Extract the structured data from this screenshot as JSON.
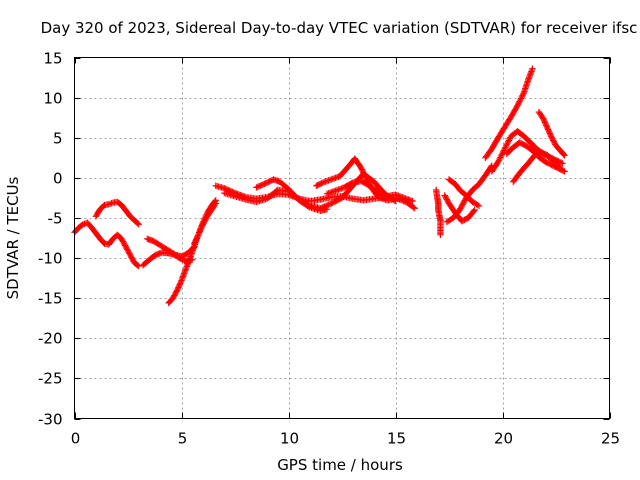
{
  "chart_data": {
    "type": "scatter",
    "title": "Day 320 of 2023, Sidereal Day-to-day VTEC variation (SDTVAR) for receiver ifsc",
    "xlabel": "GPS time / hours",
    "ylabel": "SDTVAR / TECUs",
    "xlim": [
      0,
      25
    ],
    "ylim": [
      -30,
      15
    ],
    "xticks": [
      0,
      5,
      10,
      15,
      20,
      25
    ],
    "yticks": [
      -30,
      -25,
      -20,
      -15,
      -10,
      -5,
      0,
      5,
      10,
      15
    ],
    "xtick_labels": [
      "0",
      "5",
      "10",
      "15",
      "20",
      "25"
    ],
    "ytick_labels": [
      "-30",
      "-25",
      "-20",
      "-15",
      "-10",
      "-5",
      "0",
      "5",
      "10",
      "15"
    ],
    "grid": true,
    "marker": "plus",
    "series_color": "#ff0000",
    "series": [
      {
        "name": "trace-1",
        "x": [
          0.0,
          0.2,
          0.4,
          0.6,
          0.8,
          1.0,
          1.2,
          1.4,
          1.6,
          1.8,
          2.0,
          2.2,
          2.4,
          2.6,
          2.8,
          3.0
        ],
        "y": [
          -6.8,
          -6.2,
          -5.8,
          -5.6,
          -6.2,
          -6.9,
          -7.6,
          -8.2,
          -8.3,
          -7.6,
          -7.1,
          -7.6,
          -8.6,
          -9.6,
          -10.6,
          -11.0
        ]
      },
      {
        "name": "trace-2",
        "x": [
          1.0,
          1.2,
          1.4,
          1.6,
          1.8,
          2.0,
          2.2,
          2.4,
          2.6,
          2.8,
          3.0
        ],
        "y": [
          -4.8,
          -3.9,
          -3.4,
          -3.3,
          -3.1,
          -3.0,
          -3.4,
          -4.1,
          -4.8,
          -5.3,
          -5.8
        ]
      },
      {
        "name": "trace-3",
        "x": [
          3.2,
          3.5,
          3.8,
          4.1,
          4.4,
          4.7,
          5.0,
          5.3,
          5.6
        ],
        "y": [
          -10.9,
          -10.2,
          -9.6,
          -9.3,
          -9.4,
          -9.6,
          -9.8,
          -9.4,
          -8.6
        ]
      },
      {
        "name": "trace-4",
        "x": [
          3.4,
          3.7,
          4.0,
          4.3,
          4.6,
          4.9,
          5.2,
          5.5
        ],
        "y": [
          -7.6,
          -7.9,
          -8.4,
          -8.9,
          -9.4,
          -10.0,
          -10.4,
          -10.2
        ]
      },
      {
        "name": "trace-5",
        "x": [
          4.4,
          4.6,
          4.8,
          5.0,
          5.2,
          5.4,
          5.6,
          5.8,
          6.0,
          6.2,
          6.4,
          6.6
        ],
        "y": [
          -15.6,
          -15.0,
          -14.0,
          -12.8,
          -11.4,
          -10.0,
          -8.5,
          -7.0,
          -5.6,
          -4.4,
          -3.5,
          -2.8
        ]
      },
      {
        "name": "trace-6",
        "x": [
          5.6,
          5.8,
          6.0,
          6.2,
          6.4,
          6.6
        ],
        "y": [
          -8.2,
          -7.0,
          -5.8,
          -4.8,
          -4.0,
          -3.2
        ]
      },
      {
        "name": "trace-7",
        "x": [
          6.6,
          7.0,
          7.5,
          8.0,
          8.5,
          9.0,
          9.5,
          10.0,
          10.5,
          11.0,
          11.5,
          12.0,
          12.5,
          13.0,
          13.5,
          14.0,
          14.5,
          15.0,
          15.5,
          15.9
        ],
        "y": [
          -1.0,
          -1.3,
          -1.9,
          -2.4,
          -2.6,
          -2.4,
          -2.0,
          -2.1,
          -2.6,
          -2.9,
          -2.7,
          -2.4,
          -2.3,
          -2.6,
          -2.8,
          -2.6,
          -2.4,
          -2.5,
          -3.0,
          -3.8
        ]
      },
      {
        "name": "trace-8",
        "x": [
          7.0,
          7.5,
          8.0,
          8.5,
          9.0,
          9.5,
          10.0,
          10.5,
          11.0,
          11.5,
          12.0,
          12.5,
          13.0,
          13.5,
          14.0,
          14.5,
          15.0
        ],
        "y": [
          -1.9,
          -2.3,
          -2.7,
          -3.0,
          -2.6,
          -1.5,
          -1.7,
          -2.7,
          -3.4,
          -3.8,
          -3.2,
          -2.5,
          -1.0,
          0.5,
          -0.5,
          -2.0,
          -2.9
        ]
      },
      {
        "name": "trace-9",
        "x": [
          8.5,
          9.0,
          9.3,
          9.6,
          10.0,
          10.5,
          11.0,
          11.5,
          11.8
        ],
        "y": [
          -1.2,
          -0.6,
          -0.2,
          -0.5,
          -1.4,
          -2.8,
          -3.7,
          -4.1,
          -3.9
        ]
      },
      {
        "name": "trace-10",
        "x": [
          11.3,
          11.6,
          12.0,
          12.4,
          12.8,
          13.1,
          13.4,
          13.8,
          14.2,
          14.6,
          15.0
        ],
        "y": [
          -1.0,
          -0.6,
          -0.2,
          0.2,
          1.4,
          2.4,
          1.2,
          -1.0,
          -2.4,
          -2.8,
          -2.6
        ]
      },
      {
        "name": "trace-11",
        "x": [
          11.8,
          12.2,
          12.6,
          13.0,
          13.4,
          13.8,
          14.2,
          14.6,
          15.0,
          15.4,
          15.8
        ],
        "y": [
          -2.0,
          -1.6,
          -1.2,
          -0.6,
          -0.4,
          -1.0,
          -1.8,
          -2.3,
          -2.1,
          -2.5,
          -2.9
        ]
      },
      {
        "name": "trace-12",
        "x": [
          16.9,
          16.95,
          17.0,
          17.0,
          17.05,
          17.1,
          17.1
        ],
        "y": [
          -1.5,
          -2.4,
          -3.2,
          -4.0,
          -4.7,
          -5.3,
          -7.1
        ]
      },
      {
        "name": "trace-13",
        "x": [
          17.3,
          17.5,
          17.8,
          18.1,
          18.4,
          18.7
        ],
        "y": [
          -2.2,
          -3.2,
          -4.4,
          -5.4,
          -5.0,
          -4.0
        ]
      },
      {
        "name": "trace-14",
        "x": [
          17.4,
          17.7,
          18.0,
          18.3,
          18.6,
          18.9,
          19.2,
          19.5
        ],
        "y": [
          -5.5,
          -5.0,
          -4.0,
          -2.5,
          -1.5,
          -0.8,
          0.3,
          1.5
        ]
      },
      {
        "name": "trace-15",
        "x": [
          17.5,
          17.8,
          18.0,
          18.3,
          18.6,
          18.9
        ],
        "y": [
          -0.2,
          -0.8,
          -1.5,
          -2.2,
          -3.0,
          -3.5
        ]
      },
      {
        "name": "trace-16",
        "x": [
          19.2,
          19.5,
          19.8,
          20.1,
          20.4,
          20.7,
          21.0,
          21.2,
          21.4
        ],
        "y": [
          2.5,
          3.6,
          5.0,
          6.3,
          7.6,
          9.0,
          10.6,
          12.2,
          13.6
        ]
      },
      {
        "name": "trace-17",
        "x": [
          19.5,
          19.8,
          20.1,
          20.4,
          20.7,
          21.0,
          21.3,
          21.6,
          21.9,
          22.2,
          22.5,
          22.8
        ],
        "y": [
          0.8,
          2.0,
          3.6,
          5.2,
          5.8,
          5.2,
          4.4,
          3.6,
          3.0,
          2.6,
          2.2,
          1.8
        ]
      },
      {
        "name": "trace-18",
        "x": [
          20.2,
          20.5,
          20.8,
          21.1,
          21.4,
          21.7,
          22.0,
          22.3,
          22.6,
          22.9
        ],
        "y": [
          3.0,
          3.8,
          4.4,
          4.0,
          3.4,
          2.6,
          2.0,
          1.6,
          1.2,
          0.8
        ]
      },
      {
        "name": "trace-19",
        "x": [
          20.5,
          20.8,
          21.2,
          21.5,
          21.8,
          22.1,
          22.4,
          22.7
        ],
        "y": [
          -0.5,
          0.6,
          1.8,
          2.8,
          3.2,
          2.8,
          2.0,
          1.2
        ]
      },
      {
        "name": "trace-20",
        "x": [
          21.7,
          21.9,
          22.1,
          22.3,
          22.5,
          22.7,
          22.9
        ],
        "y": [
          8.2,
          7.4,
          6.2,
          5.0,
          4.0,
          3.4,
          2.8
        ]
      }
    ]
  }
}
